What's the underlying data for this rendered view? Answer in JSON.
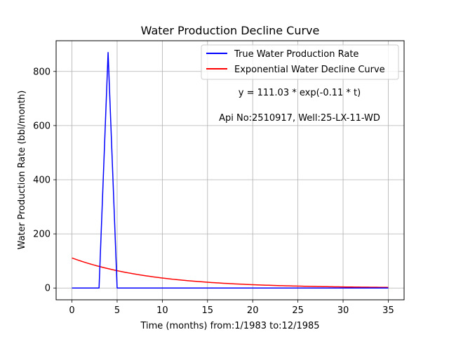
{
  "chart_data": {
    "type": "line",
    "title": "Water Production Decline Curve",
    "xlabel": "Time (months) from:1/1983 to:12/1985",
    "ylabel": "Water Production Rate (bbl/month)",
    "xlim": [
      -1.75,
      36.75
    ],
    "ylim": [
      -43.5,
      913.5
    ],
    "xticks": [
      0,
      5,
      10,
      15,
      20,
      25,
      30,
      35
    ],
    "yticks": [
      0,
      200,
      400,
      600,
      800
    ],
    "grid": true,
    "legend_position": "top-right",
    "annotations": [
      "y = 111.03 * exp(-0.11 * t)",
      "Api No:2510917, Well:25-LX-11-WD"
    ],
    "series": [
      {
        "name": "True Water Production Rate",
        "color": "#0000ff",
        "x": [
          0,
          1,
          2,
          3,
          4,
          5,
          6,
          7,
          8,
          9,
          10,
          11,
          12,
          13,
          14,
          15,
          16,
          17,
          18,
          19,
          20,
          21,
          22,
          23,
          24,
          25,
          26,
          27,
          28,
          29,
          30,
          31,
          32,
          33,
          34,
          35
        ],
        "y": [
          0,
          0,
          0,
          0,
          870,
          0,
          0,
          0,
          0,
          0,
          0,
          0,
          0,
          0,
          0,
          0,
          0,
          0,
          0,
          0,
          0,
          0,
          0,
          0,
          0,
          0,
          0,
          0,
          0,
          0,
          0,
          0,
          0,
          0,
          0,
          0
        ]
      },
      {
        "name": "Exponential Water Decline Curve",
        "color": "#ff0000",
        "formula": {
          "a": 111.03,
          "b": 0.11
        },
        "x_range": [
          0,
          35
        ]
      }
    ]
  }
}
